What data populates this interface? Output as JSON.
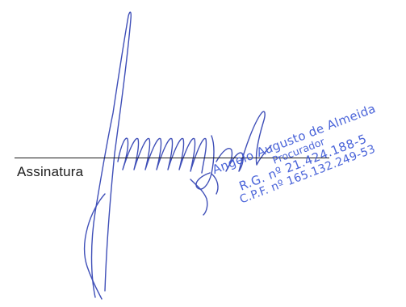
{
  "signature": {
    "label": "Assinatura",
    "ink_color": "#3f4fb8",
    "line_color": "#1a1a1a"
  },
  "stamp": {
    "name": "Angelo Augusto de Almeida",
    "role": "Procurador",
    "rg": "R.G. nº 21.424.188-5",
    "cpf": "C.P.F. nº 165.132.249-53",
    "color": "#3b57d6"
  }
}
